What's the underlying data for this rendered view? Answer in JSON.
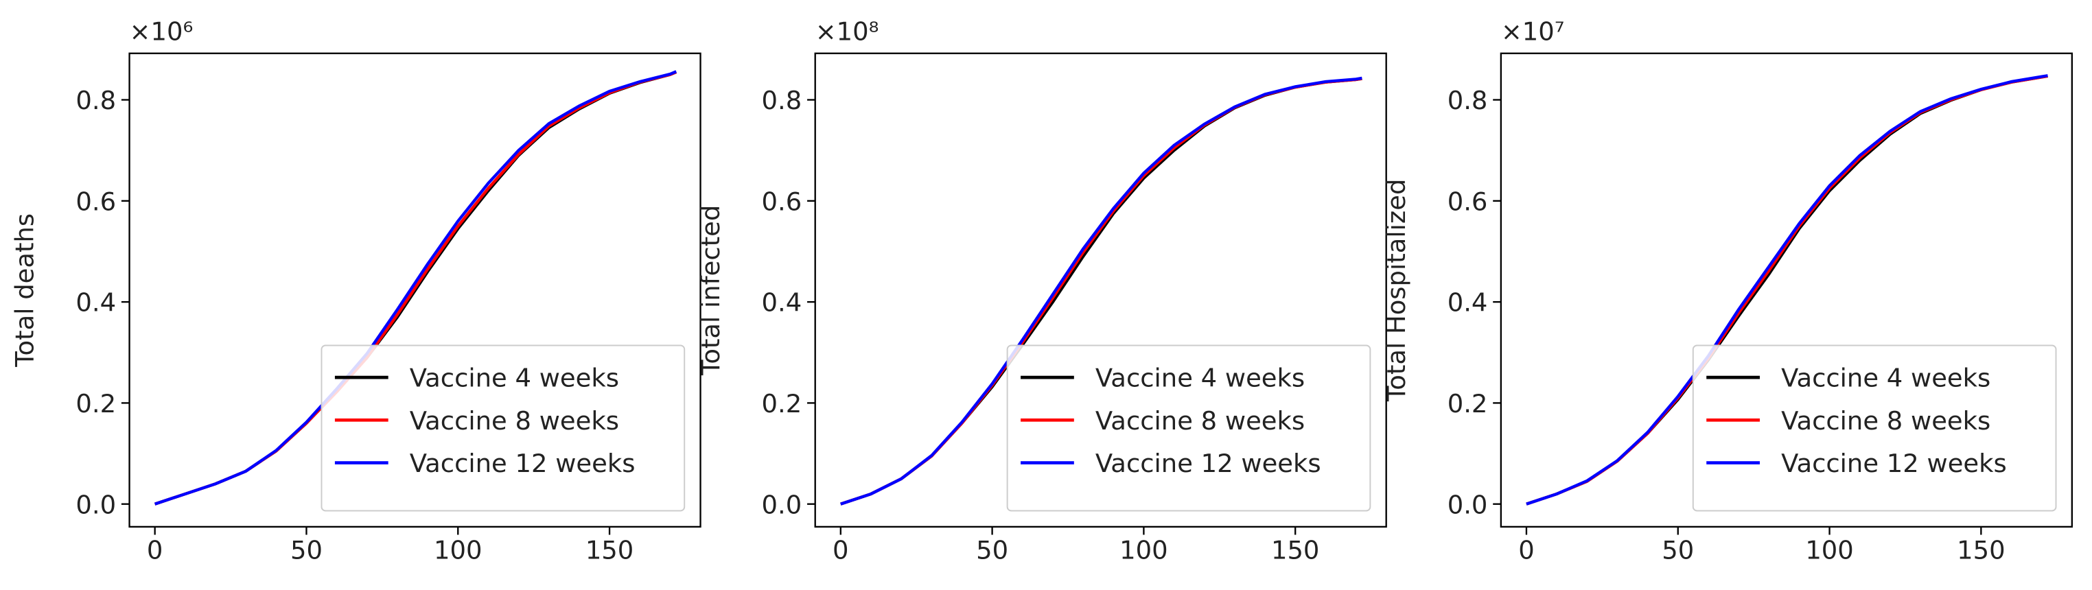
{
  "chart_data": [
    {
      "type": "line",
      "ylabel": "Total deaths",
      "offset_text": "×10⁶",
      "x": [
        0,
        10,
        20,
        30,
        40,
        50,
        60,
        70,
        80,
        90,
        100,
        110,
        120,
        130,
        140,
        150,
        160,
        170,
        172
      ],
      "series": [
        {
          "name": "Vaccine 4 weeks",
          "color": "#000000",
          "values": [
            0,
            0.02,
            0.04,
            0.065,
            0.105,
            0.16,
            0.225,
            0.29,
            0.37,
            0.46,
            0.545,
            0.62,
            0.69,
            0.745,
            0.782,
            0.813,
            0.834,
            0.85,
            0.855
          ]
        },
        {
          "name": "Vaccine 8 weeks",
          "color": "#ff0000",
          "values": [
            0,
            0.02,
            0.04,
            0.065,
            0.105,
            0.16,
            0.222,
            0.29,
            0.375,
            0.465,
            0.55,
            0.625,
            0.692,
            0.748,
            0.784,
            0.814,
            0.835,
            0.85,
            0.855
          ]
        },
        {
          "name": "Vaccine 12 weeks",
          "color": "#0000ff",
          "values": [
            0,
            0.02,
            0.04,
            0.065,
            0.106,
            0.162,
            0.228,
            0.298,
            0.385,
            0.475,
            0.56,
            0.635,
            0.7,
            0.753,
            0.788,
            0.817,
            0.836,
            0.851,
            0.856
          ]
        }
      ],
      "xlim": [
        -8.4,
        180
      ],
      "ylim": [
        -0.045,
        0.892
      ],
      "xticks": [
        0,
        50,
        100,
        150
      ],
      "yticks": [
        {
          "value": 0,
          "label": "0.0"
        },
        0.2,
        0.4,
        0.6,
        0.8
      ],
      "legend": "lower right"
    },
    {
      "type": "line",
      "ylabel": "Total infected",
      "offset_text": "×10⁸",
      "x": [
        0,
        10,
        20,
        30,
        40,
        50,
        60,
        70,
        80,
        90,
        100,
        110,
        120,
        130,
        140,
        150,
        160,
        170,
        172
      ],
      "series": [
        {
          "name": "Vaccine 4 weeks",
          "color": "#000000",
          "values": [
            0,
            0.02,
            0.05,
            0.095,
            0.16,
            0.232,
            0.315,
            0.4,
            0.49,
            0.575,
            0.645,
            0.7,
            0.748,
            0.784,
            0.809,
            0.825,
            0.835,
            0.84,
            0.842
          ]
        },
        {
          "name": "Vaccine 8 weeks",
          "color": "#ff0000",
          "values": [
            0,
            0.02,
            0.05,
            0.095,
            0.16,
            0.235,
            0.32,
            0.408,
            0.498,
            0.58,
            0.65,
            0.705,
            0.75,
            0.785,
            0.81,
            0.825,
            0.835,
            0.84,
            0.842
          ]
        },
        {
          "name": "Vaccine 12 weeks",
          "color": "#0000ff",
          "values": [
            0,
            0.02,
            0.05,
            0.096,
            0.162,
            0.238,
            0.325,
            0.415,
            0.505,
            0.585,
            0.655,
            0.71,
            0.752,
            0.786,
            0.811,
            0.826,
            0.836,
            0.841,
            0.843
          ]
        }
      ],
      "xlim": [
        -8.4,
        180
      ],
      "ylim": [
        -0.045,
        0.892
      ],
      "xticks": [
        0,
        50,
        100,
        150
      ],
      "yticks": [
        {
          "value": 0,
          "label": "0.0"
        },
        0.2,
        0.4,
        0.6,
        0.8
      ],
      "legend": "lower right"
    },
    {
      "type": "line",
      "ylabel": "Total Hospitalized",
      "offset_text": "×10⁷",
      "x": [
        0,
        10,
        20,
        30,
        40,
        50,
        60,
        70,
        80,
        90,
        100,
        110,
        120,
        130,
        140,
        150,
        160,
        170,
        172
      ],
      "series": [
        {
          "name": "Vaccine 4 weeks",
          "color": "#000000",
          "values": [
            0,
            0.02,
            0.045,
            0.085,
            0.14,
            0.207,
            0.285,
            0.372,
            0.455,
            0.545,
            0.62,
            0.68,
            0.732,
            0.773,
            0.799,
            0.82,
            0.835,
            0.845,
            0.847
          ]
        },
        {
          "name": "Vaccine 8 weeks",
          "color": "#ff0000",
          "values": [
            0,
            0.02,
            0.045,
            0.085,
            0.14,
            0.21,
            0.288,
            0.378,
            0.462,
            0.55,
            0.625,
            0.685,
            0.735,
            0.775,
            0.8,
            0.82,
            0.835,
            0.845,
            0.847
          ]
        },
        {
          "name": "Vaccine 12 weeks",
          "color": "#0000ff",
          "values": [
            0,
            0.02,
            0.046,
            0.086,
            0.142,
            0.213,
            0.293,
            0.385,
            0.47,
            0.555,
            0.63,
            0.69,
            0.738,
            0.777,
            0.802,
            0.821,
            0.836,
            0.846,
            0.848
          ]
        }
      ],
      "xlim": [
        -8.4,
        180
      ],
      "ylim": [
        -0.045,
        0.892
      ],
      "xticks": [
        0,
        50,
        100,
        150
      ],
      "yticks": [
        {
          "value": 0,
          "label": "0.0"
        },
        0.2,
        0.4,
        0.6,
        0.8
      ],
      "legend": "lower right"
    }
  ]
}
